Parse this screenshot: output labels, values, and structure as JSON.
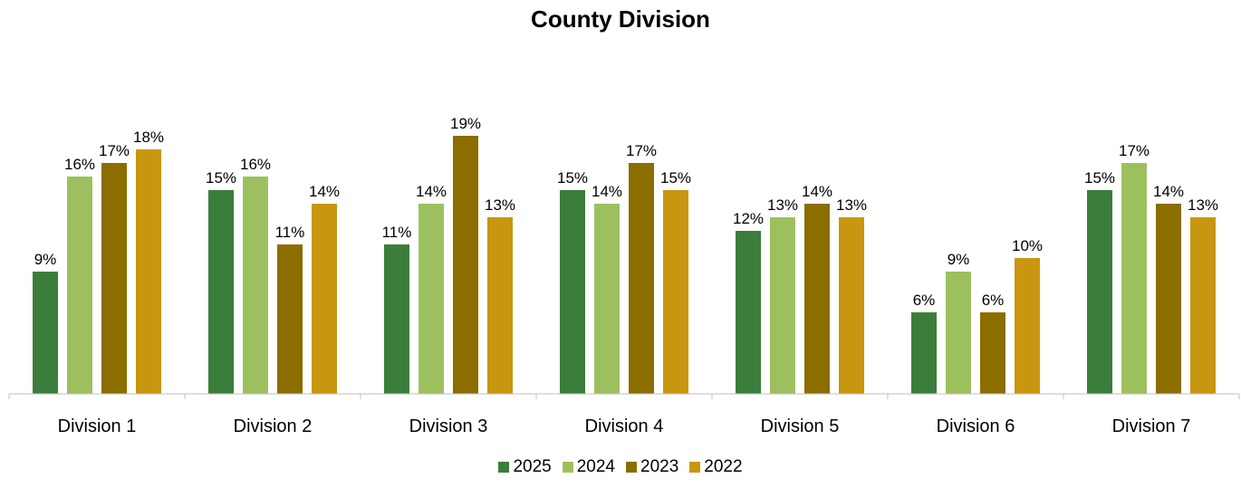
{
  "chart_data": {
    "type": "bar",
    "title": "County Division",
    "categories": [
      "Division 1",
      "Division 2",
      "Division 3",
      "Division 4",
      "Division 5",
      "Division 6",
      "Division 7"
    ],
    "series": [
      {
        "name": "2025",
        "color": "#3b7d3b",
        "values": [
          9,
          15,
          11,
          15,
          12,
          6,
          15
        ]
      },
      {
        "name": "2024",
        "color": "#9dc05f",
        "values": [
          16,
          16,
          14,
          14,
          13,
          9,
          17
        ]
      },
      {
        "name": "2023",
        "color": "#8c6d00",
        "values": [
          17,
          11,
          19,
          17,
          14,
          6,
          14
        ]
      },
      {
        "name": "2022",
        "color": "#c9960f",
        "values": [
          18,
          14,
          13,
          15,
          13,
          10,
          13
        ]
      }
    ],
    "value_suffix": "%",
    "ylim": [
      0,
      20
    ],
    "legend_position": "bottom",
    "grid": false
  }
}
